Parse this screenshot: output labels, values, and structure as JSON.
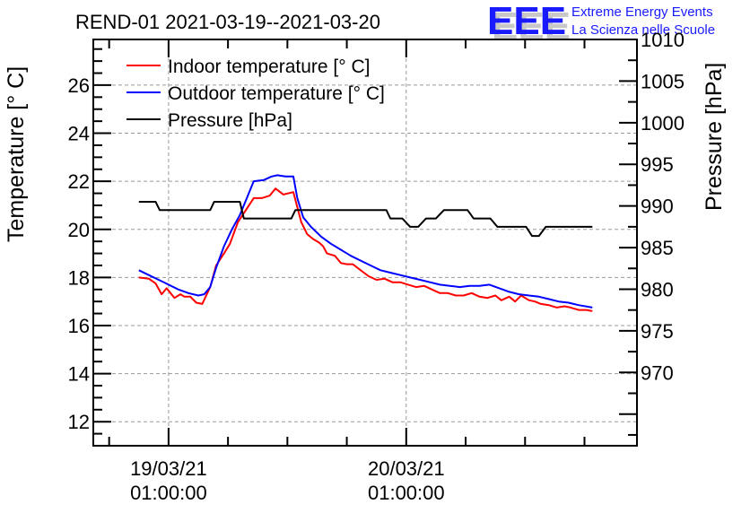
{
  "chart_data": {
    "type": "line",
    "title": "REND-01 2021-03-19--2021-03-20",
    "logo": {
      "text": "EEE",
      "line1": "Extreme Energy Events",
      "line2": "La Scienza nelle Scuole",
      "color": "#1a1aff"
    },
    "ylabel": "Temperature [° C]",
    "y2label": "Pressure [hPa]",
    "xlabel": "",
    "x_unit": "hours since 19/03/21 01:00:00",
    "xlim": [
      -7.6,
      47.3
    ],
    "ylim": [
      11.0,
      27.9
    ],
    "y2lim": [
      961.2,
      1010.0
    ],
    "grid": true,
    "legend_position": "top-left",
    "x_ticks": [
      {
        "x": 0,
        "line1": "19/03/21",
        "line2": "01:00:00"
      },
      {
        "x": 24,
        "line1": "20/03/21",
        "line2": "01:00:00"
      }
    ],
    "y_ticks": [
      12,
      14,
      16,
      18,
      20,
      22,
      24,
      26
    ],
    "y2_ticks": [
      970,
      975,
      980,
      985,
      990,
      995,
      1000,
      1005,
      1010
    ],
    "series": [
      {
        "name": "Indoor temperature [° C]",
        "axis": "left",
        "color": "#ff0000",
        "x": [
          -3,
          -2,
          -1.3,
          -0.7,
          -0.2,
          0.6,
          1.2,
          1.6,
          2.2,
          2.8,
          3.4,
          4.2,
          4.8,
          5.6,
          6.2,
          7.0,
          7.8,
          8.6,
          9.4,
          10.2,
          10.8,
          11.6,
          12.6,
          13.4,
          14.0,
          14.6,
          15.2,
          15.6,
          16.0,
          16.4,
          16.8,
          17.4,
          18.0,
          18.6,
          19.4,
          20.2,
          21.0,
          21.8,
          22.6,
          23.4,
          24.2,
          25.0,
          25.8,
          26.6,
          27.4,
          28.2,
          29.0,
          29.8,
          30.6,
          31.4,
          32.2,
          33.0,
          33.6,
          34.4,
          35.0,
          35.6,
          36.4,
          37.0,
          37.6,
          38.4,
          39.2,
          40.0,
          40.6,
          41.4,
          42.2,
          42.8
        ],
        "y": [
          18.0,
          17.95,
          17.75,
          17.3,
          17.55,
          17.15,
          17.3,
          17.2,
          17.2,
          16.95,
          16.9,
          17.6,
          18.5,
          19.0,
          19.4,
          20.3,
          20.8,
          21.3,
          21.3,
          21.4,
          21.7,
          21.45,
          21.55,
          20.3,
          19.8,
          19.6,
          19.45,
          19.3,
          19.0,
          18.95,
          18.9,
          18.6,
          18.55,
          18.55,
          18.3,
          18.05,
          17.9,
          17.95,
          17.8,
          17.8,
          17.7,
          17.6,
          17.65,
          17.5,
          17.35,
          17.35,
          17.25,
          17.25,
          17.35,
          17.2,
          17.15,
          17.25,
          17.05,
          17.2,
          17.0,
          17.25,
          17.05,
          17.0,
          16.9,
          16.85,
          16.75,
          16.8,
          16.75,
          16.65,
          16.65,
          16.6
        ]
      },
      {
        "name": "Outdoor temperature [° C]",
        "axis": "left",
        "color": "#0000ff",
        "x": [
          -3,
          -2,
          -1,
          0,
          1,
          2,
          3,
          3.6,
          4.2,
          4.8,
          5.6,
          6.4,
          7.2,
          8.0,
          8.6,
          9.6,
          10.4,
          11.0,
          11.8,
          12.6,
          13.0,
          13.6,
          14.4,
          15.4,
          16.4,
          17.4,
          18.4,
          19.4,
          20.4,
          21.4,
          22.4,
          23.4,
          24.4,
          25.4,
          26.4,
          27.4,
          28.4,
          29.4,
          30.4,
          31.4,
          32.4,
          33.4,
          34.4,
          35.4,
          36.4,
          37.4,
          38.4,
          39.4,
          40.4,
          41.4,
          42.8
        ],
        "y": [
          18.3,
          18.1,
          17.9,
          17.7,
          17.5,
          17.35,
          17.25,
          17.3,
          17.6,
          18.4,
          19.3,
          20.0,
          20.6,
          21.4,
          22.0,
          22.05,
          22.2,
          22.25,
          22.2,
          22.2,
          21.3,
          20.5,
          20.1,
          19.7,
          19.4,
          19.15,
          18.9,
          18.7,
          18.5,
          18.3,
          18.2,
          18.1,
          18.0,
          17.9,
          17.8,
          17.7,
          17.65,
          17.6,
          17.65,
          17.65,
          17.7,
          17.55,
          17.4,
          17.3,
          17.25,
          17.2,
          17.1,
          17.0,
          16.95,
          16.85,
          16.75
        ]
      },
      {
        "name": "Pressure [hPa]",
        "axis": "right",
        "color": "#000000",
        "x": [
          -3,
          -1.3,
          -0.9,
          4.2,
          4.6,
          7.2,
          7.6,
          12.4,
          12.8,
          22.0,
          22.4,
          23.6,
          24.4,
          25.2,
          26.0,
          27.0,
          27.8,
          30.2,
          30.8,
          32.5,
          33.2,
          36.1,
          36.7,
          37.4,
          38.1,
          42.8
        ],
        "y": [
          990.5,
          990.5,
          989.5,
          989.5,
          990.5,
          990.5,
          988.5,
          988.5,
          989.5,
          989.5,
          988.5,
          988.5,
          987.5,
          987.5,
          988.5,
          988.5,
          989.5,
          989.5,
          988.5,
          988.5,
          987.5,
          987.5,
          986.4,
          986.4,
          987.5,
          987.5
        ]
      }
    ]
  }
}
